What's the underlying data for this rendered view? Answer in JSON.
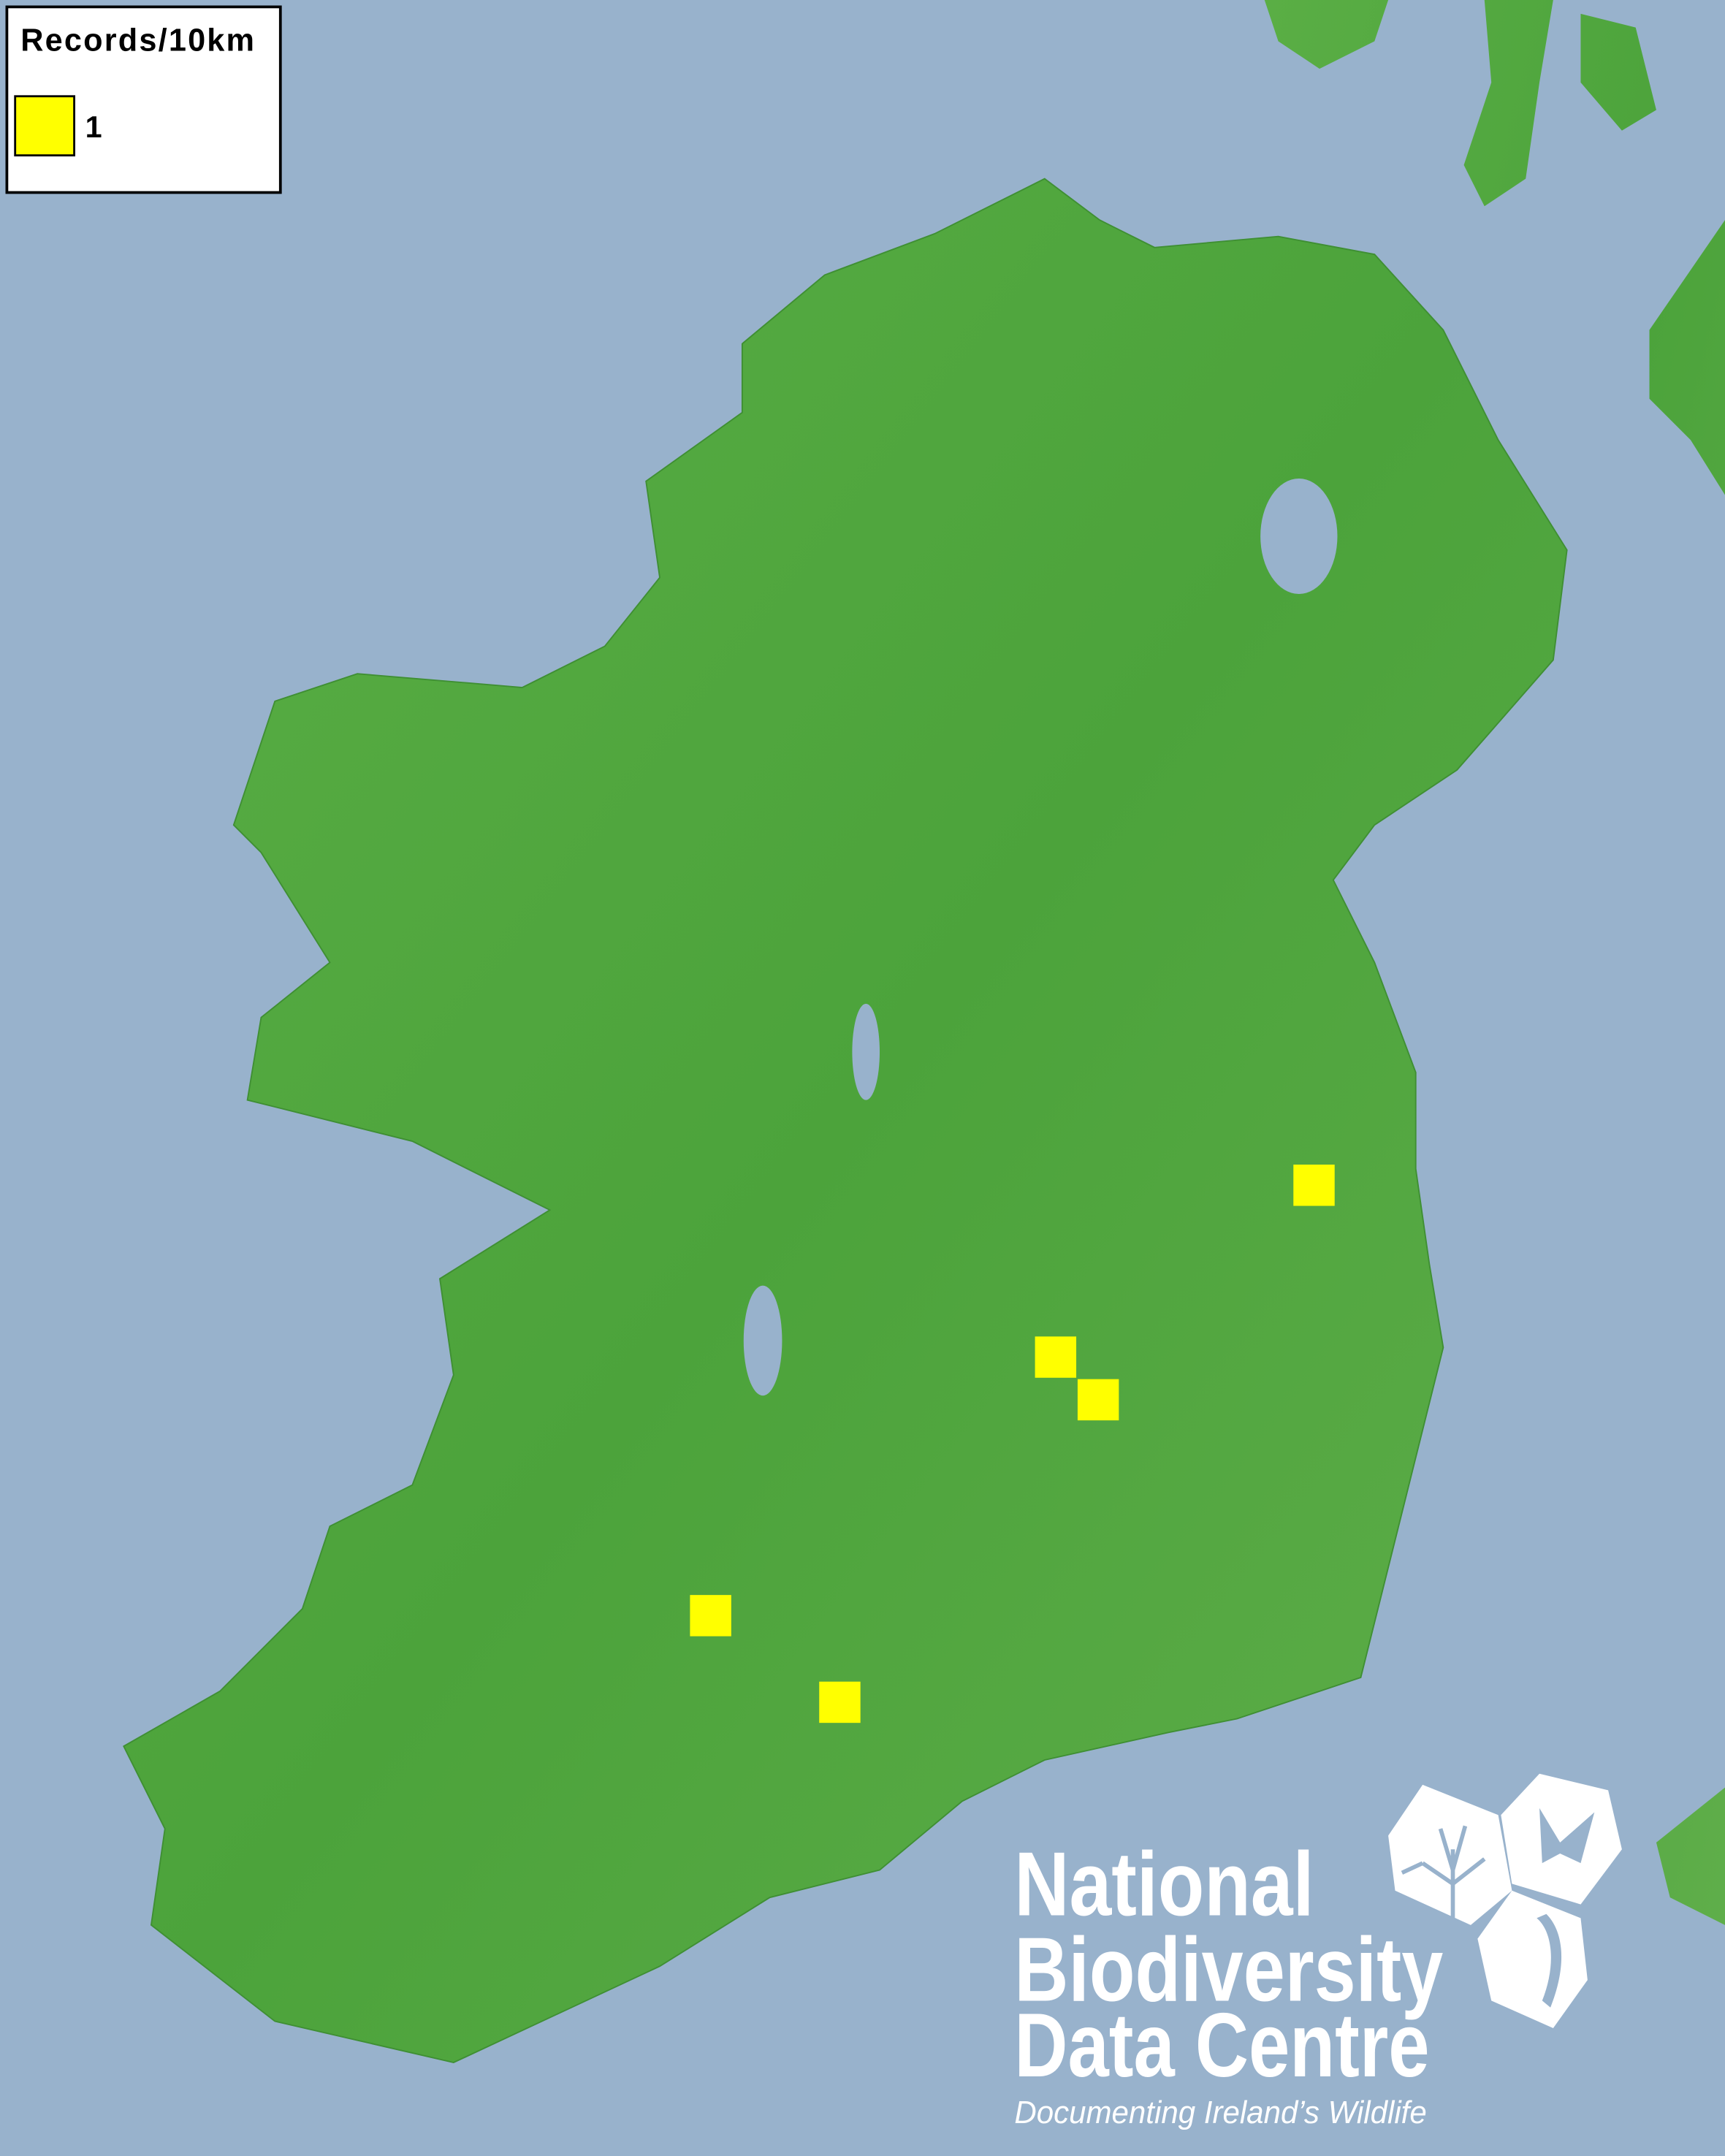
{
  "legend": {
    "title": "Records/10km",
    "items": [
      {
        "label": "1",
        "color": "#ffff00"
      }
    ]
  },
  "map": {
    "sea_color": "#98b2cc",
    "land_color": "#4ea63e",
    "record_color": "#ffff00",
    "records": [
      {
        "count": 1
      },
      {
        "count": 1
      },
      {
        "count": 1
      },
      {
        "count": 1
      },
      {
        "count": 1
      }
    ]
  },
  "logo": {
    "line1": "National",
    "line2": "Biodiversity",
    "line3": "Data Centre",
    "tagline": "Documenting Ireland’s Wildlife",
    "icons": [
      "tree-icon",
      "butterfly-icon",
      "seahorse-icon"
    ]
  }
}
